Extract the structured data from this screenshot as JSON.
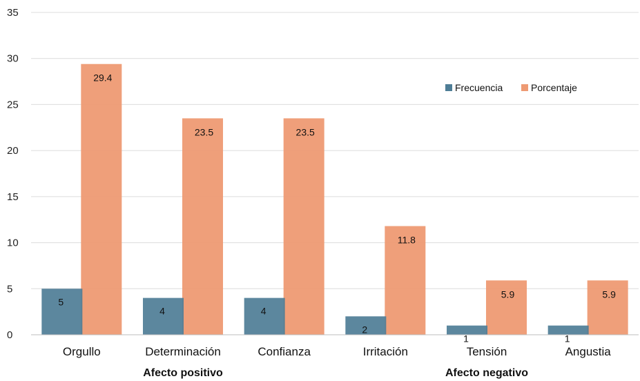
{
  "chart_data": {
    "type": "bar",
    "categories": [
      "Orgullo",
      "Determinación",
      "Confianza",
      "Irritación",
      "Tensión",
      "Angustia"
    ],
    "groups": [
      {
        "label": "Afecto positivo",
        "categories": [
          "Orgullo",
          "Determinación",
          "Confianza"
        ]
      },
      {
        "label": "Afecto negativo",
        "categories": [
          "Irritación",
          "Tensión",
          "Angustia"
        ]
      }
    ],
    "series": [
      {
        "name": "Frecuencia",
        "values": [
          5,
          4,
          4,
          2,
          1,
          1
        ],
        "labels": [
          "5",
          "4",
          "4",
          "2",
          "1",
          "1"
        ],
        "color": "#4e7d96"
      },
      {
        "name": "Porcentaje",
        "values": [
          29.4,
          23.5,
          23.5,
          11.8,
          5.9,
          5.9
        ],
        "labels": [
          "29.4",
          "23.5",
          "23.5",
          "11.8",
          "5.9",
          "5.9"
        ],
        "color": "#ee9a73"
      }
    ],
    "ylim": [
      0,
      35
    ],
    "yticks": [
      0,
      5,
      10,
      15,
      20,
      25,
      30,
      35
    ],
    "grid": true,
    "legend": "top-right",
    "title": "",
    "xlabel": "",
    "ylabel": ""
  }
}
